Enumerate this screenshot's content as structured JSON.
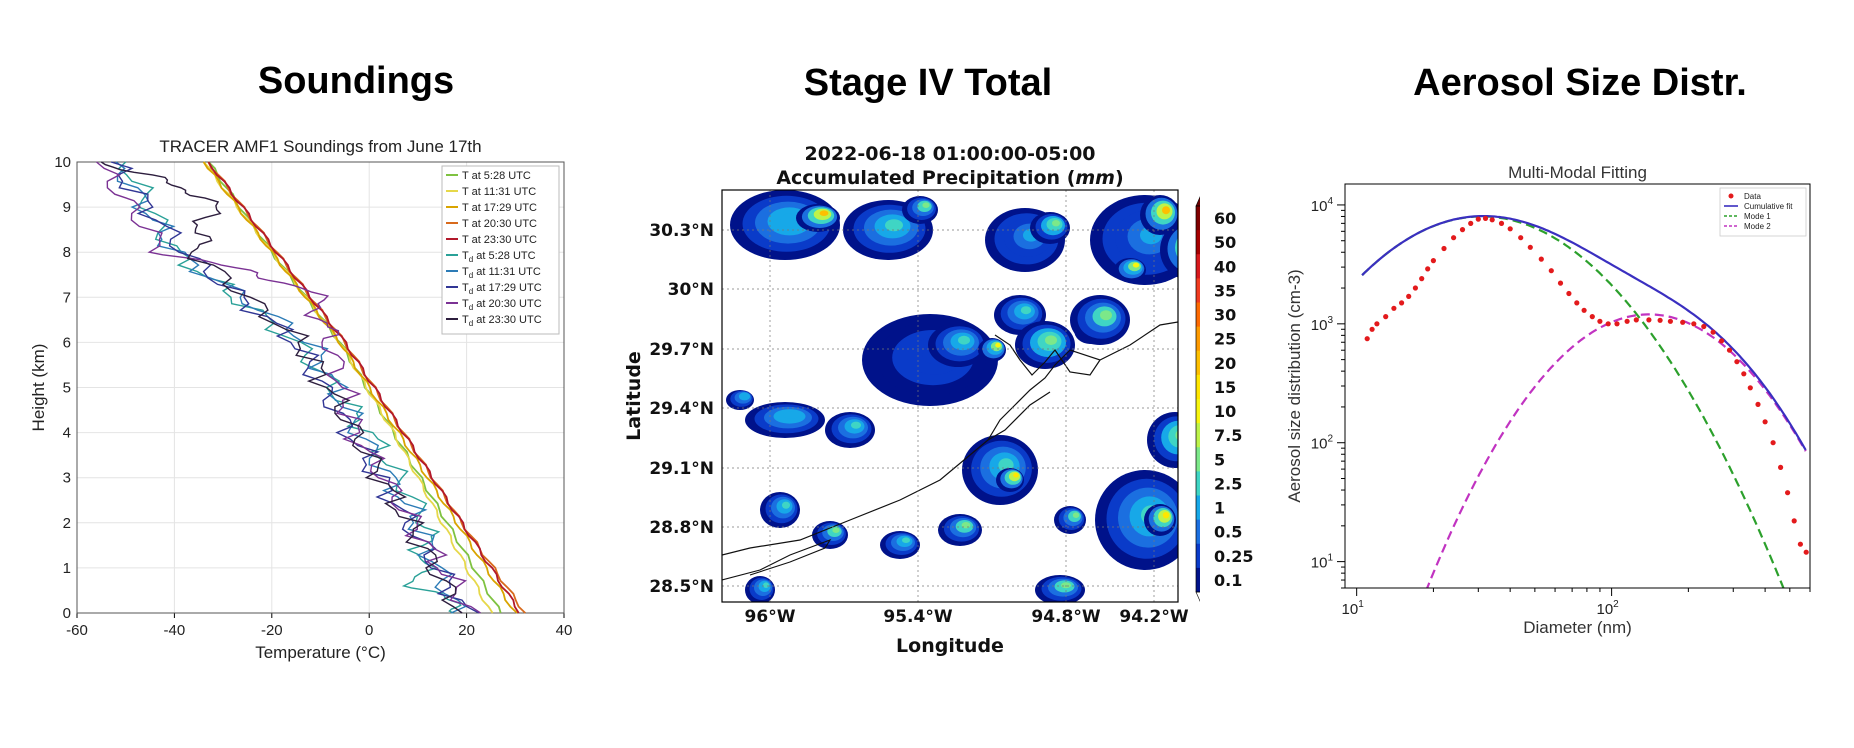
{
  "panels": {
    "soundings_title": "Soundings",
    "stage4_title": "Stage IV Total",
    "aerosol_title": "Aerosol Size Distr."
  },
  "chart_data": [
    {
      "id": "soundings",
      "type": "line",
      "title": "TRACER AMF1 Soundings from June 17th",
      "xlabel": "Temperature (°C)",
      "ylabel": "Height (km)",
      "xlim": [
        -60,
        40
      ],
      "ylim": [
        0,
        10
      ],
      "xticks": [
        -60,
        -40,
        -20,
        0,
        20,
        40
      ],
      "yticks": [
        0,
        1,
        2,
        3,
        4,
        5,
        6,
        7,
        8,
        9,
        10
      ],
      "grid": true,
      "legend": "top-right",
      "series": [
        {
          "name": "T at 5:28 UTC",
          "sub": "",
          "color": "#7fc241",
          "h": [
            0,
            2,
            4,
            6,
            8,
            10
          ],
          "v": [
            27,
            16,
            5,
            -6,
            -20,
            -33
          ]
        },
        {
          "name": "T at 11:31 UTC",
          "sub": "",
          "color": "#e6d84a",
          "h": [
            0,
            2,
            4,
            6,
            8,
            10
          ],
          "v": [
            25,
            15,
            5,
            -6,
            -20,
            -34
          ]
        },
        {
          "name": "T at 17:29 UTC",
          "sub": "",
          "color": "#d9a400",
          "h": [
            0,
            2,
            4,
            6,
            8,
            10
          ],
          "v": [
            30,
            18,
            6,
            -6,
            -20,
            -34
          ]
        },
        {
          "name": "T at 20:30 UTC",
          "sub": "",
          "color": "#d86a1c",
          "h": [
            0,
            2,
            4,
            6,
            8,
            10
          ],
          "v": [
            32,
            19,
            7,
            -5,
            -19,
            -33
          ]
        },
        {
          "name": "T at 23:30 UTC",
          "sub": "",
          "color": "#b2182b",
          "h": [
            0,
            2,
            4,
            6,
            8,
            10
          ],
          "v": [
            31,
            19,
            7,
            -5,
            -19,
            -33
          ]
        },
        {
          "name": "T",
          "sub": "d",
          "suffix": " at 5:28 UTC",
          "color": "#2aa198",
          "h": [
            0,
            0.6,
            2,
            4,
            6,
            8,
            10
          ],
          "v": [
            20,
            10,
            12,
            0,
            -15,
            -40,
            -50
          ]
        },
        {
          "name": "T",
          "sub": "d",
          "suffix": " at 11:31 UTC",
          "color": "#2c7bb6",
          "h": [
            0,
            2,
            4,
            6,
            8,
            10
          ],
          "v": [
            18,
            10,
            -2,
            -12,
            -40,
            -52
          ]
        },
        {
          "name": "T",
          "sub": "d",
          "suffix": " at 17:29 UTC",
          "color": "#313695",
          "h": [
            0,
            2,
            4,
            6,
            8,
            10
          ],
          "v": [
            20,
            8,
            -4,
            -15,
            -38,
            -53
          ]
        },
        {
          "name": "T",
          "sub": "d",
          "suffix": " at 20:30 UTC",
          "color": "#7b3294",
          "h": [
            0,
            2,
            4,
            6,
            7.2,
            8,
            10
          ],
          "v": [
            21,
            9,
            -3,
            -8,
            -12,
            -42,
            -56
          ]
        },
        {
          "name": "T",
          "sub": "d",
          "suffix": " at 23:30 UTC",
          "color": "#2d1e3e",
          "h": [
            0,
            2,
            4,
            6,
            8,
            9.2,
            10
          ],
          "v": [
            19,
            8,
            -3,
            -14,
            -36,
            -32,
            -55
          ]
        }
      ]
    },
    {
      "id": "stage4",
      "type": "heatmap",
      "title_line1": "2022-06-18 01:00:00-05:00",
      "title_line2": "Accumulated Precipitation (",
      "title_unit": "mm",
      "title_close": ")",
      "xlabel": "Longitude",
      "ylabel": "Latitude",
      "xticks": [
        "96°W",
        "95.4°W",
        "94.8°W",
        "94.2°W"
      ],
      "yticks": [
        "30.3°N",
        "30°N",
        "29.7°N",
        "29.4°N",
        "29.1°N",
        "28.8°N",
        "28.5°N"
      ],
      "colorbar_labels": [
        "60",
        "50",
        "40",
        "35",
        "30",
        "25",
        "20",
        "15",
        "10",
        "7.5",
        "5",
        "2.5",
        "1",
        "0.5",
        "0.25",
        "0.1"
      ],
      "colorbar_colors": [
        "#7f0000",
        "#a50000",
        "#d7191c",
        "#f03b20",
        "#fd6a02",
        "#fd9a00",
        "#fdbf00",
        "#ffe600",
        "#f7f50f",
        "#bdf34a",
        "#7ce889",
        "#3fd5c4",
        "#17a8e8",
        "#1b6fe0",
        "#0a3bc9",
        "#00128a"
      ]
    },
    {
      "id": "aerosol",
      "type": "line",
      "title": "Multi-Modal Fitting",
      "xlabel": "Diameter (nm)",
      "ylabel": "Aerosol size distribution (cm-3)",
      "xscale": "log",
      "yscale": "log",
      "xlim": [
        9,
        600
      ],
      "ylim": [
        6,
        15000
      ],
      "xtick_labels": [
        {
          "base": "10",
          "exp": "1"
        },
        {
          "base": "10",
          "exp": "2"
        }
      ],
      "ytick_labels": [
        {
          "base": "10",
          "exp": "1"
        },
        {
          "base": "10",
          "exp": "2"
        },
        {
          "base": "10",
          "exp": "3"
        },
        {
          "base": "10",
          "exp": "4"
        }
      ],
      "legend": "top-right",
      "legend_entries": [
        "Data",
        "Cumulative fit",
        "Mode 1",
        "Mode 2"
      ],
      "modes": [
        {
          "name": "Mode 1",
          "N": 8000,
          "Dg": 31,
          "sigma": 2.05,
          "color": "#2ca02c"
        },
        {
          "name": "Mode 2",
          "N": 1200,
          "Dg": 140,
          "sigma": 1.85,
          "color": "#c133c1"
        }
      ],
      "cumulative_color": "#3a2fc0",
      "data_color": "#e31a1c",
      "data_points": [
        [
          11,
          750
        ],
        [
          11.5,
          900
        ],
        [
          12,
          1000
        ],
        [
          13,
          1150
        ],
        [
          14,
          1350
        ],
        [
          15,
          1500
        ],
        [
          16,
          1700
        ],
        [
          17,
          2000
        ],
        [
          18,
          2400
        ],
        [
          19,
          2900
        ],
        [
          20,
          3400
        ],
        [
          22,
          4300
        ],
        [
          24,
          5300
        ],
        [
          26,
          6200
        ],
        [
          28,
          7000
        ],
        [
          30,
          7600
        ],
        [
          32,
          7700
        ],
        [
          34,
          7500
        ],
        [
          37,
          7000
        ],
        [
          40,
          6300
        ],
        [
          44,
          5300
        ],
        [
          48,
          4400
        ],
        [
          53,
          3500
        ],
        [
          58,
          2800
        ],
        [
          63,
          2200
        ],
        [
          68,
          1800
        ],
        [
          73,
          1500
        ],
        [
          78,
          1300
        ],
        [
          84,
          1150
        ],
        [
          90,
          1050
        ],
        [
          97,
          1000
        ],
        [
          105,
          1000
        ],
        [
          115,
          1050
        ],
        [
          125,
          1080
        ],
        [
          140,
          1080
        ],
        [
          155,
          1070
        ],
        [
          170,
          1050
        ],
        [
          190,
          1030
        ],
        [
          210,
          1000
        ],
        [
          230,
          950
        ],
        [
          250,
          850
        ],
        [
          270,
          720
        ],
        [
          290,
          600
        ],
        [
          310,
          480
        ],
        [
          330,
          380
        ],
        [
          350,
          290
        ],
        [
          375,
          210
        ],
        [
          400,
          150
        ],
        [
          430,
          100
        ],
        [
          460,
          62
        ],
        [
          490,
          38
        ],
        [
          520,
          22
        ],
        [
          550,
          14
        ],
        [
          580,
          12
        ]
      ]
    }
  ]
}
